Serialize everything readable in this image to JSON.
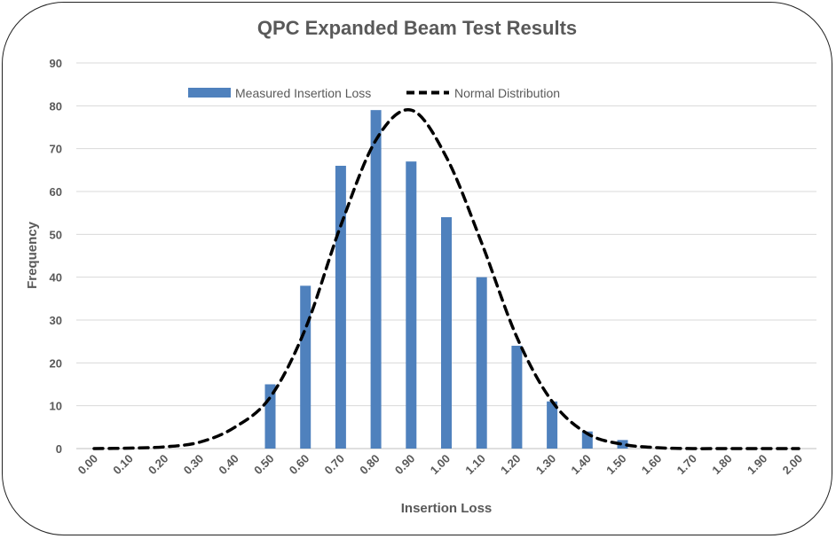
{
  "chart_data": {
    "type": "bar",
    "title": "QPC Expanded Beam Test Results",
    "xlabel": "Insertion Loss",
    "ylabel": "Frequency",
    "ylim": [
      0,
      90
    ],
    "yticks": [
      "0",
      "10",
      "20",
      "30",
      "40",
      "50",
      "60",
      "70",
      "80",
      "90"
    ],
    "categories": [
      "0.00",
      "0.10",
      "0.20",
      "0.30",
      "0.40",
      "0.50",
      "0.60",
      "0.70",
      "0.80",
      "0.90",
      "1.00",
      "1.10",
      "1.20",
      "1.30",
      "1.40",
      "1.50",
      "1.60",
      "1.70",
      "1.80",
      "1.90",
      "2.00"
    ],
    "grid": true,
    "legend_position": "top",
    "series": [
      {
        "name": "Measured Insertion Loss",
        "kind": "bar",
        "color": "#4F81BD",
        "values": [
          0,
          0,
          0,
          0,
          0,
          15,
          38,
          66,
          79,
          67,
          54,
          40,
          24,
          11,
          4,
          2,
          0,
          0,
          0,
          0,
          0
        ]
      },
      {
        "name": "Normal Distribution",
        "kind": "line",
        "style": "dashed",
        "color": "#000000",
        "values": [
          0,
          0.1,
          0.4,
          1.5,
          5,
          12,
          28,
          52,
          72,
          79,
          68,
          48,
          26,
          11,
          3.5,
          1,
          0.2,
          0,
          0,
          0,
          0
        ]
      }
    ]
  }
}
